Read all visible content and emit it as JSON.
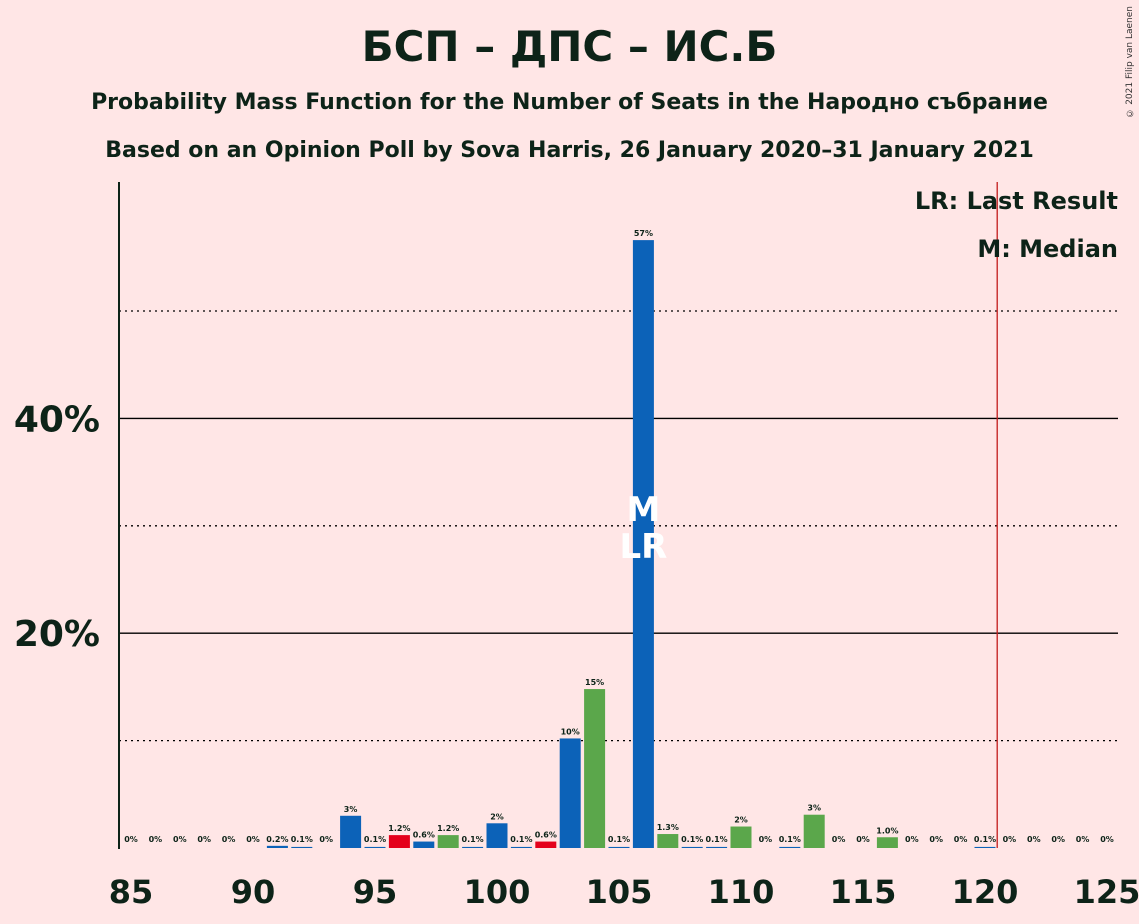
{
  "title": "БСП – ДПС – ИС.Б",
  "subtitle": "Probability Mass Function for the Number of Seats in the Народно събрание",
  "subtitle2": "Based on an Opinion Poll by Sova Harris, 26 January 2020–31 January 2021",
  "copyright": "© 2021 Filip van Laenen",
  "legend": {
    "lr": "LR: Last Result",
    "median": "M: Median"
  },
  "colors": {
    "blue": "#0C62B8",
    "green": "#5BA74B",
    "red": "#E4001B",
    "grid": "#000000",
    "lastResultLine": "#C21A1A",
    "background": "#FFE6E6"
  },
  "chart_data": {
    "type": "bar",
    "xlim": [
      85,
      125
    ],
    "ylim": [
      0,
      60
    ],
    "yticks_major": [
      20,
      40
    ],
    "yticks_minor": [
      10,
      30,
      50
    ],
    "ytick_labels": [
      "20%",
      "40%"
    ],
    "xticks": [
      85,
      90,
      95,
      100,
      105,
      110,
      115,
      120,
      125
    ],
    "last_result": 120.5,
    "median": 106,
    "median_label": "M",
    "lr_label": "LR",
    "bars": [
      {
        "x": 85,
        "value": 0,
        "label": "0%",
        "color": "blue"
      },
      {
        "x": 86,
        "value": 0,
        "label": "0%",
        "color": "blue"
      },
      {
        "x": 87,
        "value": 0,
        "label": "0%",
        "color": "blue"
      },
      {
        "x": 88,
        "value": 0,
        "label": "0%",
        "color": "blue"
      },
      {
        "x": 89,
        "value": 0,
        "label": "0%",
        "color": "blue"
      },
      {
        "x": 90,
        "value": 0,
        "label": "0%",
        "color": "blue"
      },
      {
        "x": 91,
        "value": 0.2,
        "label": "0.2%",
        "color": "blue"
      },
      {
        "x": 92,
        "value": 0.1,
        "label": "0.1%",
        "color": "blue"
      },
      {
        "x": 93,
        "value": 0,
        "label": "0%",
        "color": "blue"
      },
      {
        "x": 94,
        "value": 3.0,
        "label": "3%",
        "color": "blue"
      },
      {
        "x": 95,
        "value": 0.1,
        "label": "0.1%",
        "color": "blue"
      },
      {
        "x": 96,
        "value": 1.2,
        "label": "1.2%",
        "color": "red"
      },
      {
        "x": 97,
        "value": 0.6,
        "label": "0.6%",
        "color": "blue"
      },
      {
        "x": 98,
        "value": 1.2,
        "label": "1.2%",
        "color": "green"
      },
      {
        "x": 99,
        "value": 0.1,
        "label": "0.1%",
        "color": "blue"
      },
      {
        "x": 100,
        "value": 2.3,
        "label": "2%",
        "color": "blue"
      },
      {
        "x": 101,
        "value": 0.1,
        "label": "0.1%",
        "color": "blue"
      },
      {
        "x": 102,
        "value": 0.6,
        "label": "0.6%",
        "color": "red"
      },
      {
        "x": 103,
        "value": 10.2,
        "label": "10%",
        "color": "blue"
      },
      {
        "x": 104,
        "value": 14.8,
        "label": "15%",
        "color": "green"
      },
      {
        "x": 105,
        "value": 0.1,
        "label": "0.1%",
        "color": "blue"
      },
      {
        "x": 106,
        "value": 56.6,
        "label": "57%",
        "color": "blue"
      },
      {
        "x": 107,
        "value": 1.3,
        "label": "1.3%",
        "color": "green"
      },
      {
        "x": 108,
        "value": 0.1,
        "label": "0.1%",
        "color": "blue"
      },
      {
        "x": 109,
        "value": 0.1,
        "label": "0.1%",
        "color": "blue"
      },
      {
        "x": 110,
        "value": 2.0,
        "label": "2%",
        "color": "green"
      },
      {
        "x": 111,
        "value": 0,
        "label": "0%",
        "color": "blue"
      },
      {
        "x": 112,
        "value": 0.1,
        "label": "0.1%",
        "color": "blue"
      },
      {
        "x": 113,
        "value": 3.1,
        "label": "3%",
        "color": "green"
      },
      {
        "x": 114,
        "value": 0,
        "label": "0%",
        "color": "blue"
      },
      {
        "x": 115,
        "value": 0,
        "label": "0%",
        "color": "blue"
      },
      {
        "x": 116,
        "value": 1.0,
        "label": "1.0%",
        "color": "green"
      },
      {
        "x": 117,
        "value": 0,
        "label": "0%",
        "color": "blue"
      },
      {
        "x": 118,
        "value": 0,
        "label": "0%",
        "color": "blue"
      },
      {
        "x": 119,
        "value": 0,
        "label": "0%",
        "color": "blue"
      },
      {
        "x": 120,
        "value": 0.1,
        "label": "0.1%",
        "color": "blue"
      },
      {
        "x": 121,
        "value": 0,
        "label": "0%",
        "color": "blue"
      },
      {
        "x": 122,
        "value": 0,
        "label": "0%",
        "color": "blue"
      },
      {
        "x": 123,
        "value": 0,
        "label": "0%",
        "color": "blue"
      },
      {
        "x": 124,
        "value": 0,
        "label": "0%",
        "color": "blue"
      },
      {
        "x": 125,
        "value": 0,
        "label": "0%",
        "color": "blue"
      }
    ]
  }
}
